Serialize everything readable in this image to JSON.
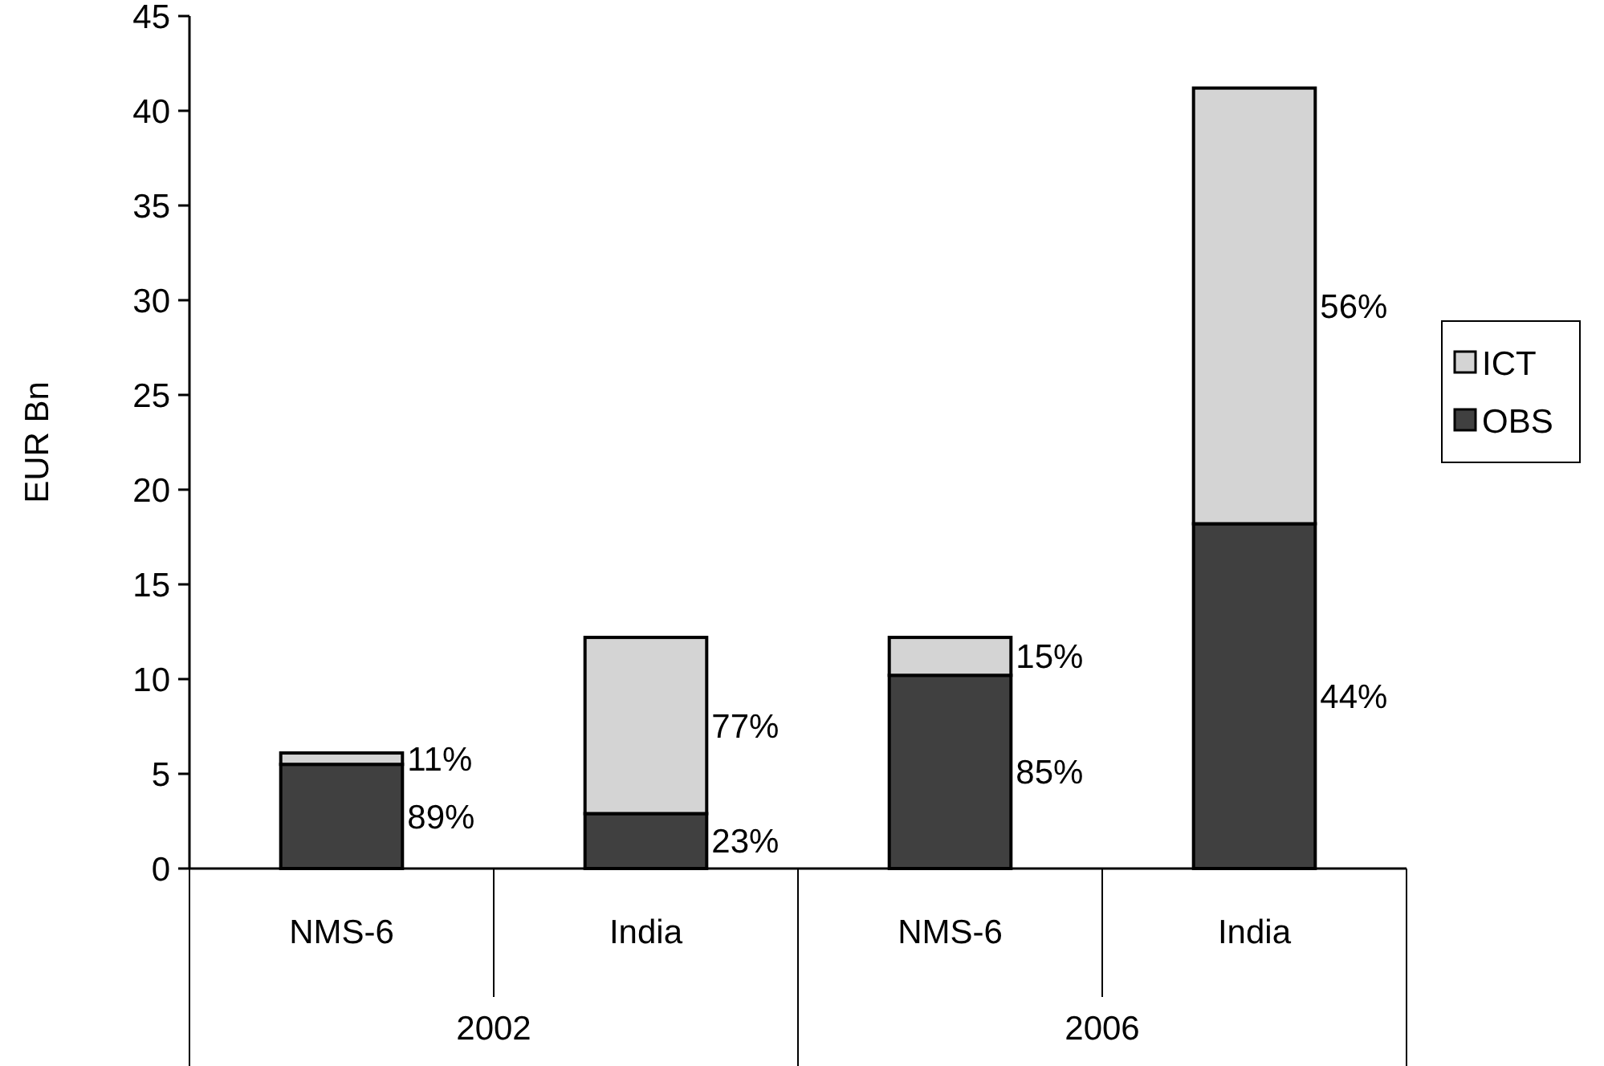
{
  "chart_data": {
    "type": "bar",
    "stacked": true,
    "ylabel": "EUR Bn",
    "categories": [
      "NMS-6",
      "India",
      "NMS-6",
      "India"
    ],
    "series": [
      {
        "name": "OBS",
        "color": "#404040",
        "values": [
          5.5,
          2.9,
          10.2,
          18.2
        ]
      },
      {
        "name": "ICT",
        "color": "#d4d4d4",
        "values": [
          0.6,
          9.3,
          2.0,
          23.0
        ]
      }
    ],
    "ylim": [
      0,
      45
    ],
    "yticks": [
      0,
      5,
      10,
      15,
      20,
      25,
      30,
      35,
      40,
      45
    ],
    "grid": false,
    "legend": "right",
    "annotations": [
      "89%",
      "11%",
      "23%",
      "77%",
      "85%",
      "15%",
      "44%",
      "56%",
      "2002",
      "2006"
    ]
  }
}
